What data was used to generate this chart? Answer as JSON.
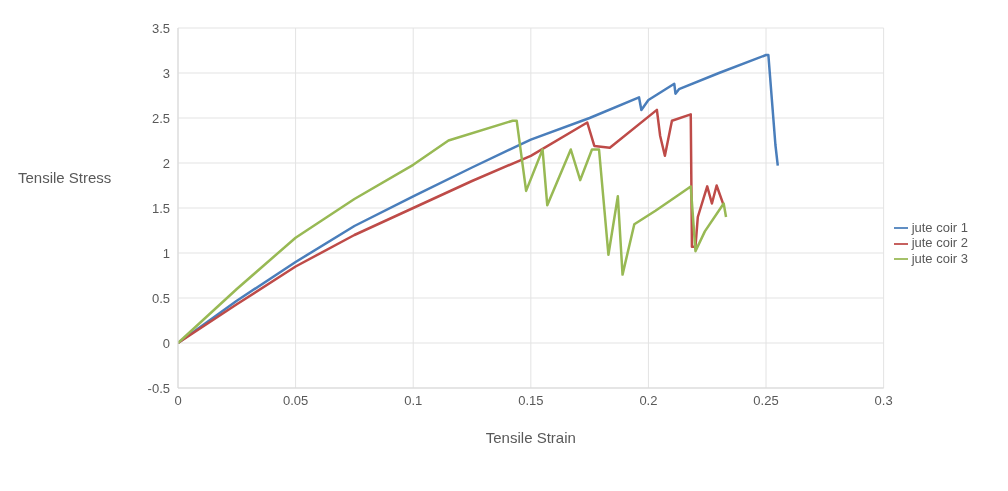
{
  "chart_data": {
    "type": "line",
    "xlabel": "Tensile Strain",
    "ylabel": "Tensile Stress",
    "xlim": [
      0,
      0.3
    ],
    "xticks": [
      0,
      0.05,
      0.1,
      0.15,
      0.2,
      0.25,
      0.3
    ],
    "ylim": [
      -0.5,
      3.5
    ],
    "yticks": [
      -0.5,
      0,
      0.5,
      1,
      1.5,
      2,
      2.5,
      3,
      3.5
    ],
    "grid": true,
    "legend": "right",
    "marker": "none",
    "series": [
      {
        "name": "jute coir 1",
        "color": "#4a7ebb",
        "x": [
          0,
          0.025,
          0.05,
          0.075,
          0.1,
          0.125,
          0.15,
          0.175,
          0.196,
          0.197,
          0.2,
          0.211,
          0.2115,
          0.213,
          0.23,
          0.25,
          0.251,
          0.254,
          0.255
        ],
        "values": [
          0,
          0.47,
          0.9,
          1.3,
          1.63,
          1.95,
          2.26,
          2.5,
          2.73,
          2.59,
          2.7,
          2.88,
          2.77,
          2.82,
          3.0,
          3.2,
          3.2,
          2.2,
          1.97
        ]
      },
      {
        "name": "jute coir 2",
        "color": "#be4b48",
        "x": [
          0,
          0.025,
          0.05,
          0.075,
          0.1,
          0.125,
          0.15,
          0.174,
          0.177,
          0.1836,
          0.2036,
          0.205,
          0.207,
          0.21,
          0.218,
          0.2185,
          0.22,
          0.221,
          0.225,
          0.227,
          0.229,
          0.232
        ],
        "values": [
          0,
          0.43,
          0.85,
          1.2,
          1.5,
          1.8,
          2.08,
          2.45,
          2.19,
          2.17,
          2.59,
          2.3,
          2.08,
          2.47,
          2.54,
          1.07,
          1.07,
          1.4,
          1.74,
          1.55,
          1.75,
          1.53
        ]
      },
      {
        "name": "jute coir 3",
        "color": "#98b954",
        "x": [
          0,
          0.025,
          0.05,
          0.075,
          0.1,
          0.115,
          0.1423,
          0.144,
          0.148,
          0.155,
          0.157,
          0.167,
          0.171,
          0.176,
          0.179,
          0.183,
          0.187,
          0.189,
          0.194,
          0.203,
          0.212,
          0.218,
          0.22,
          0.224,
          0.232,
          0.233
        ],
        "values": [
          0,
          0.6,
          1.17,
          1.6,
          1.98,
          2.25,
          2.47,
          2.47,
          1.69,
          2.15,
          1.53,
          2.15,
          1.81,
          2.15,
          2.15,
          0.98,
          1.63,
          0.76,
          1.32,
          1.47,
          1.63,
          1.74,
          1.02,
          1.24,
          1.55,
          1.4
        ]
      }
    ]
  }
}
